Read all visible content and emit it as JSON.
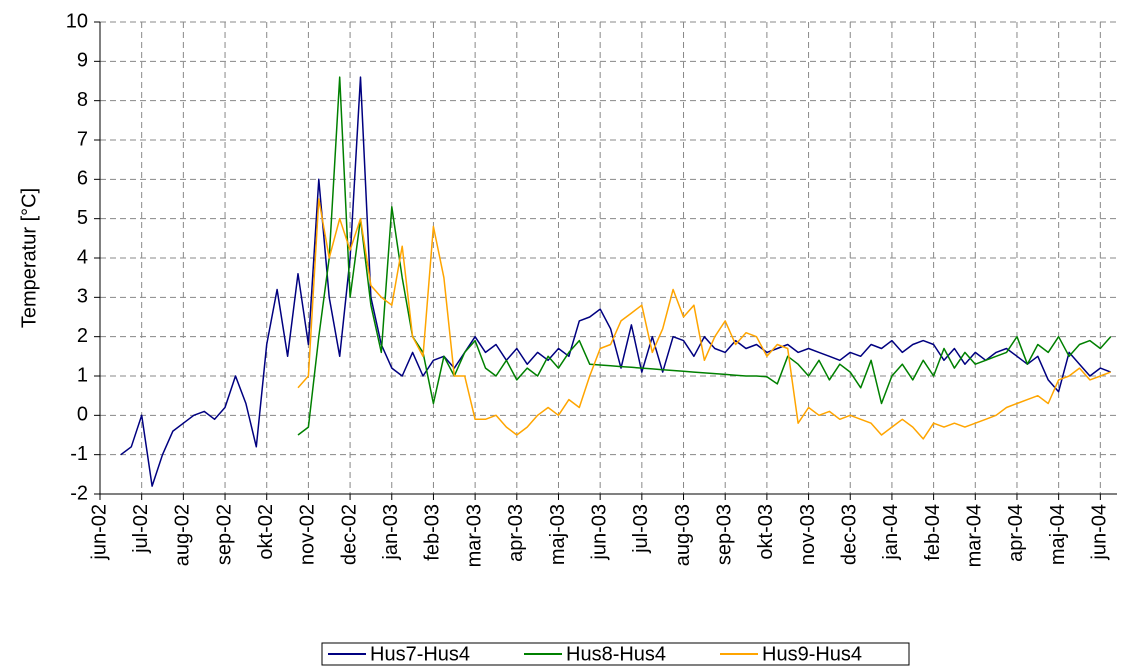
{
  "chart_data": {
    "type": "line",
    "y_label": "Temperatur [°C]",
    "x": [
      0.5,
      0.75,
      1,
      1.25,
      1.5,
      1.75,
      2,
      2.25,
      2.5,
      2.75,
      3,
      3.25,
      3.5,
      3.75,
      4,
      4.25,
      4.5,
      4.75,
      5,
      5.25,
      5.5,
      5.75,
      6,
      6.25,
      6.5,
      6.75,
      7,
      7.25,
      7.5,
      7.75,
      8,
      8.25,
      8.5,
      8.75,
      9,
      9.25,
      9.5,
      9.75,
      10,
      10.25,
      10.5,
      10.75,
      11,
      11.25,
      11.5,
      11.75,
      12,
      12.25,
      12.5,
      12.75,
      13,
      13.25,
      13.5,
      13.75,
      14,
      14.25,
      14.5,
      14.75,
      15,
      15.25,
      15.5,
      15.75,
      16,
      16.25,
      16.5,
      16.75,
      17,
      17.25,
      17.5,
      17.75,
      18,
      18.25,
      18.5,
      18.75,
      19,
      19.25,
      19.5,
      19.75,
      20,
      20.25,
      20.5,
      20.75,
      21,
      21.25,
      21.5,
      21.75,
      22,
      22.25,
      22.5,
      22.75,
      23,
      23.25,
      23.5,
      23.75,
      24,
      24.25
    ],
    "series": [
      {
        "name": "Hus7-Hus4",
        "color": "#000080",
        "values": [
          -1.0,
          -0.8,
          0.0,
          -1.8,
          -1.0,
          -0.4,
          -0.2,
          0.0,
          0.1,
          -0.1,
          0.2,
          1.0,
          0.3,
          -0.8,
          1.8,
          3.2,
          1.5,
          3.6,
          1.8,
          6.0,
          3.0,
          1.5,
          4.0,
          8.6,
          3.0,
          1.8,
          1.2,
          1.0,
          1.6,
          1.0,
          1.4,
          1.5,
          1.2,
          1.6,
          2.0,
          1.6,
          1.8,
          1.4,
          1.7,
          1.3,
          1.6,
          1.4,
          1.7,
          1.5,
          2.4,
          2.5,
          2.7,
          2.2,
          1.2,
          2.3,
          1.1,
          2.0,
          1.1,
          2.0,
          1.9,
          1.5,
          2.0,
          1.7,
          1.6,
          1.9,
          1.7,
          1.8,
          1.6,
          1.7,
          1.8,
          1.6,
          1.7,
          1.6,
          1.5,
          1.4,
          1.6,
          1.5,
          1.8,
          1.7,
          1.9,
          1.6,
          1.8,
          1.9,
          1.8,
          1.4,
          1.7,
          1.3,
          1.6,
          1.4,
          1.6,
          1.7,
          1.5,
          1.3,
          1.5,
          0.9,
          0.6,
          1.6,
          1.3,
          1.0,
          1.2,
          1.1
        ]
      },
      {
        "name": "Hus8-Hus4",
        "color": "#008000",
        "values": [
          null,
          null,
          null,
          null,
          null,
          null,
          null,
          null,
          null,
          null,
          null,
          null,
          null,
          null,
          null,
          null,
          null,
          -0.5,
          -0.3,
          2.0,
          4.0,
          8.6,
          3.0,
          5.0,
          2.8,
          1.6,
          5.3,
          3.5,
          2.0,
          1.6,
          0.3,
          1.5,
          1.0,
          1.6,
          1.9,
          1.2,
          1.0,
          1.4,
          0.9,
          1.2,
          1.0,
          1.5,
          1.2,
          1.6,
          1.9,
          1.3,
          1.28,
          1.26,
          1.24,
          1.22,
          1.2,
          1.18,
          1.16,
          1.14,
          1.12,
          1.1,
          1.08,
          1.06,
          1.04,
          1.02,
          1.0,
          1.0,
          0.98,
          0.8,
          1.5,
          1.3,
          1.0,
          1.4,
          0.9,
          1.3,
          1.1,
          0.7,
          1.4,
          0.3,
          1.0,
          1.3,
          0.9,
          1.4,
          1.0,
          1.7,
          1.2,
          1.6,
          1.3,
          1.4,
          1.5,
          1.6,
          2.0,
          1.3,
          1.8,
          1.6,
          2.0,
          1.5,
          1.8,
          1.9,
          1.7,
          2.0
        ]
      },
      {
        "name": "Hus9-Hus4",
        "color": "#ffa500",
        "values": [
          null,
          null,
          null,
          null,
          null,
          null,
          null,
          null,
          null,
          null,
          null,
          null,
          null,
          null,
          null,
          null,
          null,
          0.7,
          1.0,
          5.5,
          4.0,
          5.0,
          4.2,
          5.0,
          3.3,
          3.0,
          2.8,
          4.3,
          2.0,
          1.5,
          4.8,
          3.5,
          1.0,
          1.0,
          -0.1,
          -0.1,
          0.0,
          -0.3,
          -0.5,
          -0.3,
          0.0,
          0.2,
          0.0,
          0.4,
          0.2,
          1.0,
          1.7,
          1.8,
          2.4,
          2.6,
          2.8,
          1.6,
          2.2,
          3.2,
          2.5,
          2.8,
          1.4,
          2.0,
          2.4,
          1.8,
          2.1,
          2.0,
          1.5,
          1.8,
          1.7,
          -0.2,
          0.2,
          0.0,
          0.1,
          -0.1,
          0.0,
          -0.1,
          -0.2,
          -0.5,
          -0.3,
          -0.1,
          -0.3,
          -0.6,
          -0.2,
          -0.3,
          -0.2,
          -0.3,
          -0.2,
          -0.1,
          0.0,
          0.2,
          0.3,
          0.4,
          0.5,
          0.3,
          0.9,
          1.0,
          1.2,
          0.9,
          1.0,
          1.1
        ]
      }
    ],
    "xlim": [
      0,
      24.4
    ],
    "xticks": [
      {
        "value": 0,
        "label": "jun-02"
      },
      {
        "value": 1,
        "label": "jul-02"
      },
      {
        "value": 2,
        "label": "aug-02"
      },
      {
        "value": 3,
        "label": "sep-02"
      },
      {
        "value": 4,
        "label": "okt-02"
      },
      {
        "value": 5,
        "label": "nov-02"
      },
      {
        "value": 6,
        "label": "dec-02"
      },
      {
        "value": 7,
        "label": "jan-03"
      },
      {
        "value": 8,
        "label": "feb-03"
      },
      {
        "value": 9,
        "label": "mar-03"
      },
      {
        "value": 10,
        "label": "apr-03"
      },
      {
        "value": 11,
        "label": "maj-03"
      },
      {
        "value": 12,
        "label": "jun-03"
      },
      {
        "value": 13,
        "label": "jul-03"
      },
      {
        "value": 14,
        "label": "aug-03"
      },
      {
        "value": 15,
        "label": "sep-03"
      },
      {
        "value": 16,
        "label": "okt-03"
      },
      {
        "value": 17,
        "label": "nov-03"
      },
      {
        "value": 18,
        "label": "dec-03"
      },
      {
        "value": 19,
        "label": "jan-04"
      },
      {
        "value": 20,
        "label": "feb-04"
      },
      {
        "value": 21,
        "label": "mar-04"
      },
      {
        "value": 22,
        "label": "apr-04"
      },
      {
        "value": 23,
        "label": "maj-04"
      },
      {
        "value": 24,
        "label": "jun-04"
      }
    ],
    "ylim": [
      -2,
      10
    ],
    "yticks": [
      -2,
      -1,
      0,
      1,
      2,
      3,
      4,
      5,
      6,
      7,
      8,
      9,
      10
    ],
    "grid": true,
    "legend": "bottom"
  }
}
